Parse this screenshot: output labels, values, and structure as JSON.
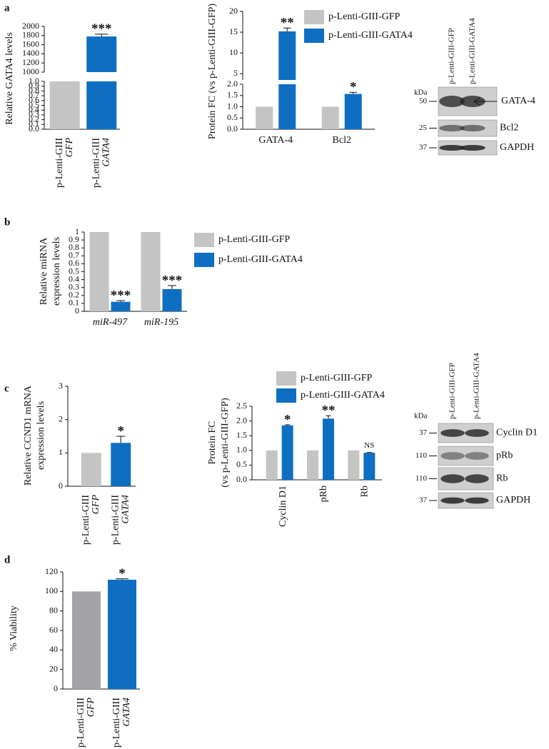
{
  "panels": [
    "a",
    "b",
    "c",
    "d"
  ],
  "chart_data": [
    {
      "type": "bar",
      "ylabel": "Relative GATA4 levels",
      "categories": [
        [
          "p-Lenti-GIII",
          "GFP"
        ],
        [
          "p-Lenti-GIII",
          "GATA4"
        ]
      ],
      "values": [
        1,
        1780
      ],
      "errors": [
        null,
        50
      ],
      "colors": [
        "#c4c4c4",
        "#0e6fc2"
      ],
      "significance": [
        null,
        "***"
      ],
      "segments": [
        {
          "ylim": [
            0,
            1
          ],
          "yticks": [
            {
              "value": 0,
              "label": "0.0"
            },
            0.1,
            0.2,
            0.3,
            0.4,
            0.5,
            0.6,
            0.7,
            0.8,
            0.9,
            {
              "value": 1,
              "label": "1.0"
            }
          ]
        },
        {
          "ylim": [
            1000,
            2000
          ],
          "yticks": [
            1000,
            1200,
            1400,
            1600,
            1800,
            2000
          ]
        }
      ]
    },
    {
      "type": "bar",
      "ylabel": "Protein FC (vs p-Lenti-GIII-GFP)",
      "categories": [
        "GATA-4",
        "Bcl2"
      ],
      "series": [
        {
          "name": "p-Lenti-GIII-GFP",
          "color": "#c4c4c4",
          "values": [
            1,
            1
          ]
        },
        {
          "name": "p-Lenti-GIII-GATA4",
          "color": "#0e6fc2",
          "values": [
            15.2,
            1.57
          ],
          "errors": [
            0.8,
            0.07
          ],
          "significance": [
            "**",
            "*"
          ]
        }
      ],
      "segments": [
        {
          "ylim": [
            0,
            2
          ],
          "yticks": [
            {
              "value": 0,
              "label": "0.0"
            },
            0.5,
            {
              "value": 1,
              "label": "1.0"
            },
            1.5,
            {
              "value": 2,
              "label": "2.0"
            }
          ]
        },
        {
          "ylim": [
            3.5,
            20
          ],
          "yticks": [
            5,
            10,
            15,
            20
          ]
        }
      ]
    },
    {
      "type": "bar",
      "ylabel": [
        "Relative miRNA",
        "expression levels"
      ],
      "categories": [
        "miR-497",
        "miR-195"
      ],
      "series": [
        {
          "name": "p-Lenti-GIII-GFP",
          "color": "#c4c4c4",
          "values": [
            1,
            1
          ]
        },
        {
          "name": "p-Lenti-GIII-GATA4",
          "color": "#0e6fc2",
          "values": [
            0.12,
            0.28
          ],
          "errors": [
            0.015,
            0.045
          ],
          "significance": [
            "***",
            "***"
          ]
        }
      ],
      "ylim": [
        0,
        1
      ],
      "yticks": [
        0,
        0.1,
        0.2,
        0.3,
        0.4,
        0.5,
        0.6,
        0.7,
        0.8,
        0.9,
        1
      ]
    },
    {
      "type": "bar",
      "ylabel": [
        "Relative CCND1 mRNA",
        "expression levels"
      ],
      "categories": [
        [
          "p-Lenti-GIII",
          "GFP"
        ],
        [
          "p-Lenti-GIII",
          "GATA4"
        ]
      ],
      "values": [
        1,
        1.3
      ],
      "errors": [
        null,
        0.2
      ],
      "colors": [
        "#c4c4c4",
        "#0e6fc2"
      ],
      "significance": [
        null,
        "*"
      ],
      "ylim": [
        0,
        3
      ],
      "yticks": [
        0,
        1,
        2,
        3
      ]
    },
    {
      "type": "bar",
      "ylabel": [
        "Protein FC",
        "(vs p-Lenti-GIII-GFP)"
      ],
      "categories": [
        "Cyclin D1",
        "pRb",
        "Rb"
      ],
      "series": [
        {
          "name": "p-Lenti-GIII-GFP",
          "color": "#c4c4c4",
          "values": [
            1,
            1,
            1
          ]
        },
        {
          "name": "p-Lenti-GIII-GATA4",
          "color": "#0e6fc2",
          "values": [
            1.85,
            2.08,
            0.92
          ],
          "errors": [
            0.02,
            0.1,
            0.01
          ],
          "significance": [
            "*",
            "**",
            "NS"
          ]
        }
      ],
      "ylim": [
        0,
        2.5
      ],
      "yticks": [
        {
          "value": 0,
          "label": "0.0"
        },
        0.5,
        {
          "value": 1,
          "label": "1.0"
        },
        1.5,
        {
          "value": 2,
          "label": "2.0"
        },
        2.5
      ]
    },
    {
      "type": "bar",
      "ylabel": "% Viability",
      "categories": [
        [
          "p-Lenti-GIII",
          "GFP"
        ],
        [
          "p-Lenti-GIII",
          "GATA4"
        ]
      ],
      "values": [
        100,
        112
      ],
      "errors": [
        null,
        1
      ],
      "colors": [
        "#a3a3a7",
        "#0e6fc2"
      ],
      "significance": [
        null,
        "*"
      ],
      "ylim": [
        0,
        120
      ],
      "yticks": [
        0,
        20,
        40,
        60,
        80,
        100,
        120
      ]
    }
  ],
  "blots": [
    {
      "columns": [
        "p-Lenti-GIII-GFP",
        "p-Lenti-GIII-GATA4"
      ],
      "unit": "kDa",
      "rows": [
        {
          "marker": 50,
          "label": "GATA-4"
        },
        {
          "marker": 25,
          "label": "Bcl2"
        },
        {
          "marker": 37,
          "label": "GAPDH"
        }
      ]
    },
    {
      "columns": [
        "p-Lenti-GIII-GFP",
        "p-Lenti-GIII-GATA4"
      ],
      "unit": "kDa",
      "rows": [
        {
          "marker": 37,
          "label": "Cyclin D1"
        },
        {
          "marker": 110,
          "label": "pRb"
        },
        {
          "marker": 110,
          "label": "Rb"
        },
        {
          "marker": 37,
          "label": "GAPDH"
        }
      ]
    }
  ]
}
